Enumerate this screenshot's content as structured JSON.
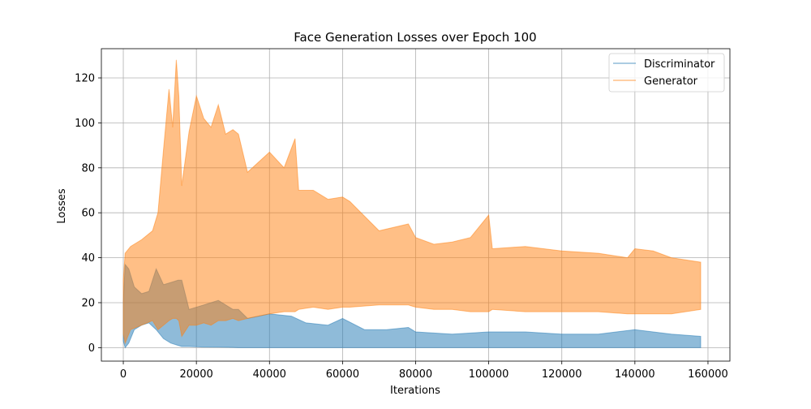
{
  "chart_data": {
    "type": "line",
    "title": "Face Generation Losses over Epoch 100",
    "xlabel": "Iterations",
    "ylabel": "Losses",
    "xlim": [
      -6000,
      166000
    ],
    "ylim": [
      -6,
      133
    ],
    "xticks": [
      0,
      20000,
      40000,
      60000,
      80000,
      100000,
      120000,
      140000,
      160000
    ],
    "xtick_labels": [
      "0",
      "20000",
      "40000",
      "60000",
      "80000",
      "100000",
      "120000",
      "140000",
      "160000"
    ],
    "yticks": [
      0,
      20,
      40,
      60,
      80,
      100,
      120
    ],
    "ytick_labels": [
      "0",
      "20",
      "40",
      "60",
      "80",
      "100",
      "120"
    ],
    "grid": true,
    "legend_position": "upper right",
    "series": [
      {
        "name": "Discriminator",
        "color": "#1f77b4",
        "alpha": 0.5,
        "envelope": {
          "x": [
            0,
            500,
            1500,
            3000,
            5000,
            7000,
            9000,
            11000,
            13000,
            15000,
            16000,
            18000,
            22000,
            26000,
            30000,
            31500,
            34000,
            40000,
            46000,
            50000,
            56000,
            60000,
            66000,
            72000,
            78000,
            80000,
            90000,
            100000,
            110000,
            120000,
            130000,
            140000,
            150000,
            158000
          ],
          "upper": [
            20,
            37,
            35,
            27,
            24,
            25,
            35,
            28,
            29,
            30,
            30,
            17,
            19,
            21,
            17,
            17,
            13,
            15,
            14,
            11,
            10,
            13,
            8,
            8,
            9,
            7,
            6,
            7,
            7,
            6,
            6,
            8,
            6,
            5
          ],
          "lower": [
            3,
            0,
            2,
            8,
            10,
            11,
            8,
            4,
            2,
            1,
            0.5,
            0.5,
            0.3,
            0.2,
            0.1,
            0,
            0,
            0,
            0,
            0,
            0,
            0,
            0,
            0,
            0,
            0,
            0,
            0,
            0,
            0,
            0,
            0,
            0,
            0
          ]
        }
      },
      {
        "name": "Generator",
        "color": "#ff7f0e",
        "alpha": 0.5,
        "envelope": {
          "x": [
            0,
            500,
            2000,
            5000,
            8000,
            9500,
            11000,
            12500,
            13500,
            14500,
            15200,
            16000,
            18000,
            20000,
            22000,
            24000,
            26000,
            28000,
            30000,
            31500,
            34000,
            40000,
            44000,
            47000,
            48000,
            52000,
            56000,
            60000,
            62000,
            70000,
            78000,
            80000,
            85000,
            90000,
            95000,
            100000,
            101000,
            110000,
            120000,
            130000,
            138000,
            140000,
            145000,
            150000,
            158000
          ],
          "upper": [
            30,
            42,
            45,
            48,
            52,
            60,
            88,
            115,
            98,
            128,
            112,
            72,
            96,
            112,
            102,
            98,
            108,
            95,
            97,
            95,
            78,
            87,
            80,
            93,
            70,
            70,
            66,
            67,
            65,
            52,
            55,
            49,
            46,
            47,
            49,
            59,
            44,
            45,
            43,
            42,
            40,
            44,
            43,
            40,
            38
          ],
          "lower": [
            6,
            2,
            8,
            10,
            12,
            8,
            10,
            12,
            13,
            13,
            12,
            5,
            10,
            10,
            11,
            10,
            12,
            12,
            13,
            12,
            13,
            15,
            16,
            16,
            17,
            18,
            17,
            18,
            18,
            19,
            19,
            18,
            17,
            17,
            16,
            16,
            17,
            16,
            16,
            16,
            15,
            15,
            15,
            15,
            17
          ]
        }
      }
    ]
  }
}
